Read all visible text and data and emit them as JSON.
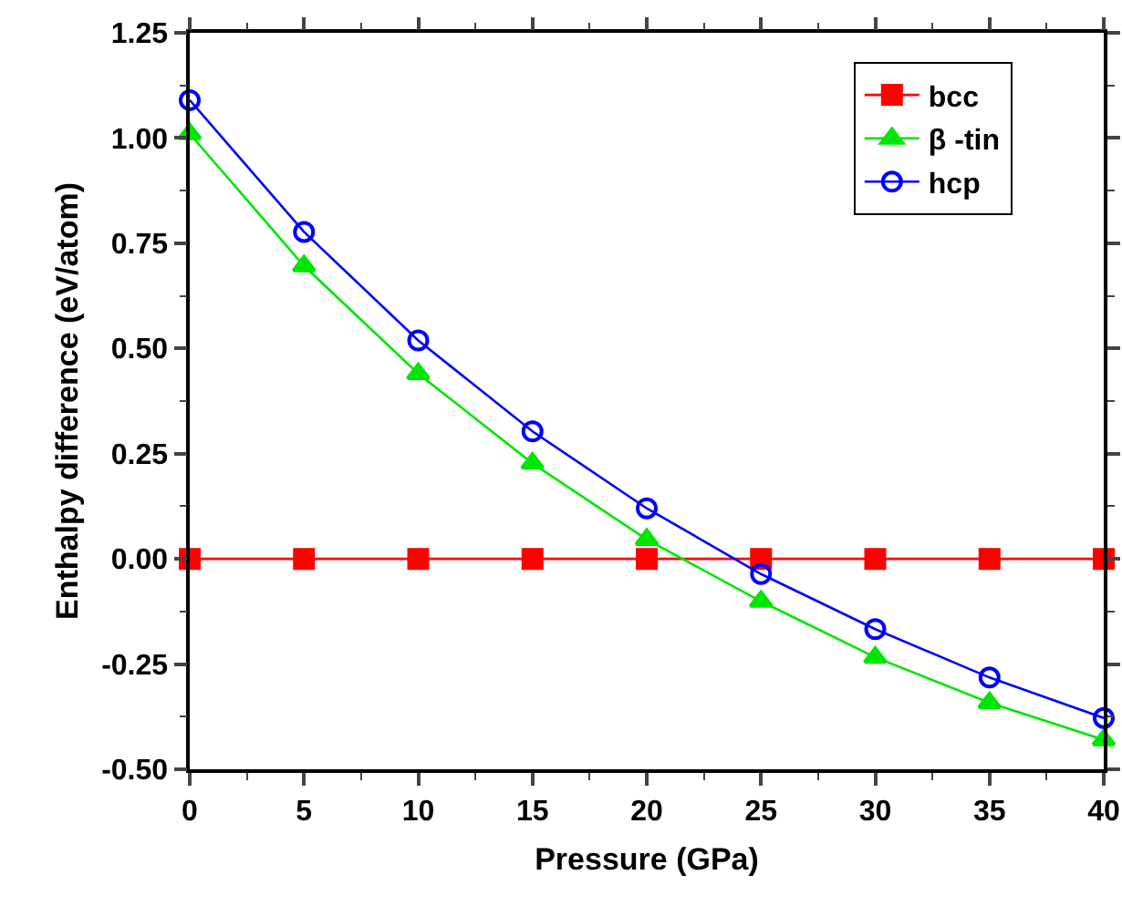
{
  "chart_data": {
    "type": "line",
    "xlabel": "Pressure (GPa)",
    "ylabel": "Enthalpy difference (eV/atom)",
    "x": [
      0,
      5,
      10,
      15,
      20,
      25,
      30,
      35,
      40
    ],
    "series": [
      {
        "name": "bcc",
        "color": "#ff0000",
        "marker": "square",
        "values": [
          0,
          0,
          0,
          0,
          0,
          0,
          0,
          0,
          0
        ]
      },
      {
        "name": "β -tin",
        "color": "#00e600",
        "marker": "triangle",
        "values": [
          1.01,
          0.696,
          0.44,
          0.227,
          0.046,
          -0.101,
          -0.234,
          -0.342,
          -0.43
        ]
      },
      {
        "name": "hcp",
        "color": "#0000ff",
        "marker": "circle",
        "values": [
          1.09,
          0.777,
          0.519,
          0.303,
          0.12,
          -0.036,
          -0.167,
          -0.282,
          -0.378
        ]
      }
    ],
    "xlim": [
      0,
      40
    ],
    "xticks": [
      0,
      {
        "value": 2.5,
        "label": null
      },
      5,
      {
        "value": 7.5,
        "label": null
      },
      10,
      {
        "value": 12.5,
        "label": null
      },
      15,
      {
        "value": 17.5,
        "label": null
      },
      20,
      {
        "value": 22.5,
        "label": null
      },
      25,
      {
        "value": 27.5,
        "label": null
      },
      30,
      {
        "value": 32.5,
        "label": null
      },
      35,
      {
        "value": 37.5,
        "label": null
      },
      40
    ],
    "ylim": [
      -0.5,
      1.25
    ],
    "yticks": [
      {
        "value": -0.5,
        "label": "-0.50"
      },
      {
        "value": -0.375,
        "label": null
      },
      {
        "value": -0.25,
        "label": "-0.25"
      },
      {
        "value": -0.125,
        "label": null
      },
      {
        "value": 0,
        "label": "0.00"
      },
      {
        "value": 0.125,
        "label": null
      },
      {
        "value": 0.25,
        "label": "0.25"
      },
      {
        "value": 0.375,
        "label": null
      },
      {
        "value": 0.5,
        "label": "0.50"
      },
      {
        "value": 0.625,
        "label": null
      },
      {
        "value": 0.75,
        "label": "0.75"
      },
      {
        "value": 0.875,
        "label": null
      },
      {
        "value": 1,
        "label": "1.00"
      },
      {
        "value": 1.125,
        "label": null
      },
      {
        "value": 1.25,
        "label": "1.25"
      }
    ],
    "grid": false,
    "legend": "top right",
    "line_style": "solid"
  }
}
